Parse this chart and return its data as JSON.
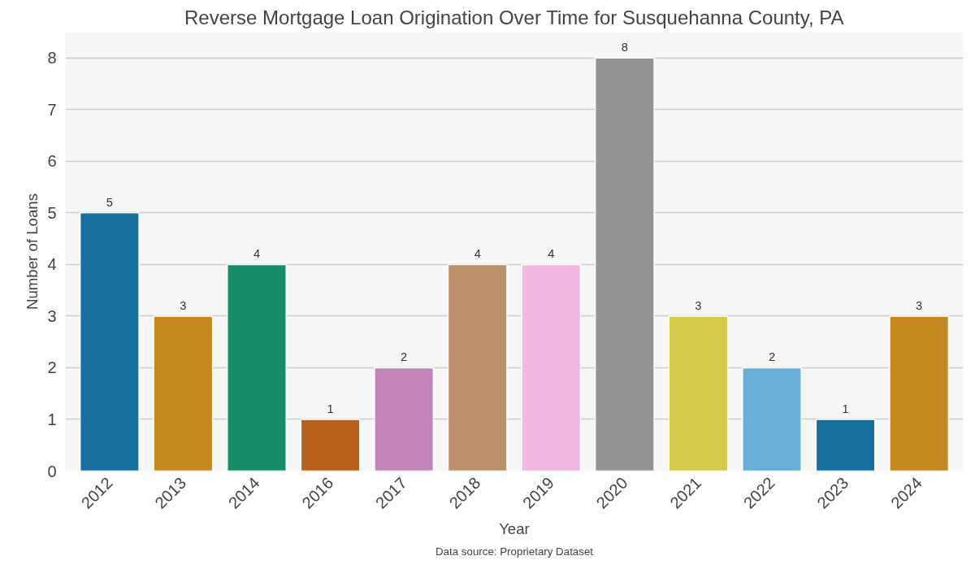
{
  "chart_data": {
    "type": "bar",
    "title": "Reverse Mortgage Loan Origination Over Time for Susquehanna County, PA",
    "xlabel": "Year",
    "ylabel": "Number of Loans",
    "categories": [
      "2012",
      "2013",
      "2014",
      "2016",
      "2017",
      "2018",
      "2019",
      "2020",
      "2021",
      "2022",
      "2023",
      "2024"
    ],
    "values": [
      5,
      3,
      4,
      1,
      2,
      4,
      4,
      8,
      3,
      2,
      1,
      3
    ],
    "colors": [
      "#176d9c",
      "#c38820",
      "#168c68",
      "#b8621d",
      "#c285b8",
      "#bb916d",
      "#f0b8e0",
      "#949494",
      "#d6ca4a",
      "#68b0d8",
      "#176d9c",
      "#c38820"
    ],
    "ylim": [
      0,
      8.5
    ],
    "yticks": [
      0,
      1,
      2,
      3,
      4,
      5,
      6,
      7,
      8
    ],
    "grid": "y",
    "data_labels": true,
    "annotations": [
      "Data source: Proprietary Dataset"
    ]
  }
}
